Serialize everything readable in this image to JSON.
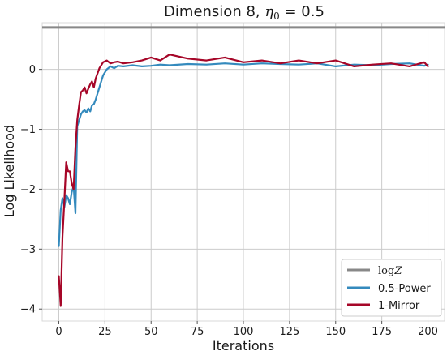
{
  "chart_data": {
    "type": "line",
    "title": "Dimension 8, η₀ = 0.5",
    "title_parts": {
      "prefix": "Dimension 8, ",
      "eta": "η",
      "sub": "0",
      "suffix": " = 0.5"
    },
    "xlabel": "Iterations",
    "ylabel": "Log Likelihood",
    "xlim": [
      -9,
      209
    ],
    "ylim": [
      -4.2,
      0.78
    ],
    "xticks": [
      0,
      25,
      50,
      75,
      100,
      125,
      150,
      175,
      200
    ],
    "yticks": [
      0,
      -1,
      -2,
      -3,
      -4
    ],
    "ytick_labels": [
      "0",
      "−1",
      "−2",
      "−3",
      "−4"
    ],
    "grid": true,
    "legend_position": "lower-right",
    "reference_line": {
      "name": "log Z",
      "name_math": {
        "fn": "log",
        "var": "Z"
      },
      "value": 0.7,
      "color": "#888888"
    },
    "series": [
      {
        "name": "0.5-Power",
        "color": "#348ABD",
        "x": [
          0,
          1,
          2,
          3,
          4,
          5,
          6,
          7,
          8,
          9,
          10,
          11,
          12,
          13,
          14,
          15,
          16,
          17,
          18,
          19,
          20,
          22,
          24,
          26,
          28,
          30,
          32,
          35,
          40,
          45,
          50,
          55,
          60,
          70,
          80,
          90,
          100,
          110,
          120,
          130,
          140,
          150,
          160,
          170,
          180,
          190,
          198,
          200
        ],
        "y": [
          -2.95,
          -2.35,
          -2.15,
          -2.3,
          -2.1,
          -2.15,
          -2.25,
          -2.05,
          -1.95,
          -2.4,
          -0.95,
          -0.85,
          -0.75,
          -0.7,
          -0.68,
          -0.72,
          -0.65,
          -0.7,
          -0.6,
          -0.58,
          -0.5,
          -0.3,
          -0.1,
          0.0,
          0.05,
          0.02,
          0.06,
          0.05,
          0.07,
          0.05,
          0.06,
          0.08,
          0.07,
          0.09,
          0.08,
          0.1,
          0.08,
          0.1,
          0.09,
          0.08,
          0.1,
          0.05,
          0.08,
          0.07,
          0.09,
          0.1,
          0.06,
          0.08
        ]
      },
      {
        "name": "1-Mirror",
        "color": "#A60628",
        "x": [
          0,
          1,
          2,
          3,
          4,
          5,
          6,
          7,
          8,
          9,
          10,
          11,
          12,
          13,
          14,
          15,
          16,
          17,
          18,
          19,
          20,
          22,
          24,
          26,
          28,
          30,
          32,
          35,
          40,
          45,
          50,
          55,
          60,
          70,
          80,
          90,
          100,
          110,
          120,
          130,
          140,
          150,
          160,
          170,
          180,
          190,
          198,
          200
        ],
        "y": [
          -3.45,
          -3.95,
          -2.8,
          -2.2,
          -1.55,
          -1.7,
          -1.7,
          -1.9,
          -2.0,
          -1.3,
          -0.85,
          -0.6,
          -0.38,
          -0.35,
          -0.3,
          -0.4,
          -0.32,
          -0.25,
          -0.2,
          -0.3,
          -0.15,
          0.02,
          0.12,
          0.15,
          0.1,
          0.12,
          0.13,
          0.1,
          0.12,
          0.15,
          0.2,
          0.15,
          0.25,
          0.18,
          0.15,
          0.2,
          0.12,
          0.15,
          0.1,
          0.15,
          0.1,
          0.15,
          0.05,
          0.08,
          0.1,
          0.05,
          0.12,
          0.05
        ]
      }
    ]
  }
}
